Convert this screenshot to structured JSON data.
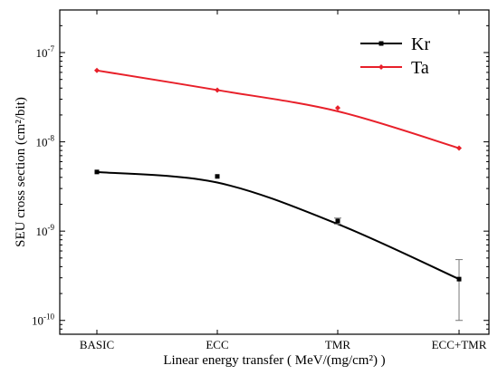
{
  "chart_data": {
    "type": "line",
    "categories": [
      "BASIC",
      "ECC",
      "TMR",
      "ECC+TMR"
    ],
    "xlabel": "Linear energy transfer ( MeV/(mg/cm²) )",
    "ylabel": "SEU cross section (cm²/bit)",
    "yscale": "log",
    "ylim": [
      7e-11,
      3e-07
    ],
    "ytick_values": [
      1e-10,
      1e-09,
      1e-08,
      1e-07
    ],
    "ytick_labels": [
      {
        "base": "10",
        "exp": "-10"
      },
      {
        "base": "10",
        "exp": "-9"
      },
      {
        "base": "10",
        "exp": "-8"
      },
      {
        "base": "10",
        "exp": "-7"
      }
    ],
    "legend_position": "top-right",
    "grid": false,
    "series": [
      {
        "name": "Kr",
        "color": "#000000",
        "marker": "square",
        "values": [
          4.6e-09,
          4.1e-09,
          1.3e-09,
          2.9e-10
        ],
        "error_high": [
          null,
          null,
          1.4e-09,
          4.8e-10
        ],
        "error_low": [
          null,
          null,
          1.2e-09,
          1e-10
        ],
        "fit_curve": [
          4.6e-09,
          3.5e-09,
          1.2e-09,
          2.9e-10
        ]
      },
      {
        "name": "Ta",
        "color": "#e8202a",
        "marker": "diamond",
        "values": [
          6.3e-08,
          3.8e-08,
          2.4e-08,
          8.5e-09
        ],
        "error_high": [
          null,
          null,
          null,
          null
        ],
        "error_low": [
          null,
          null,
          null,
          null
        ],
        "fit_curve": [
          6.3e-08,
          3.8e-08,
          2.2e-08,
          8.5e-09
        ]
      }
    ]
  }
}
